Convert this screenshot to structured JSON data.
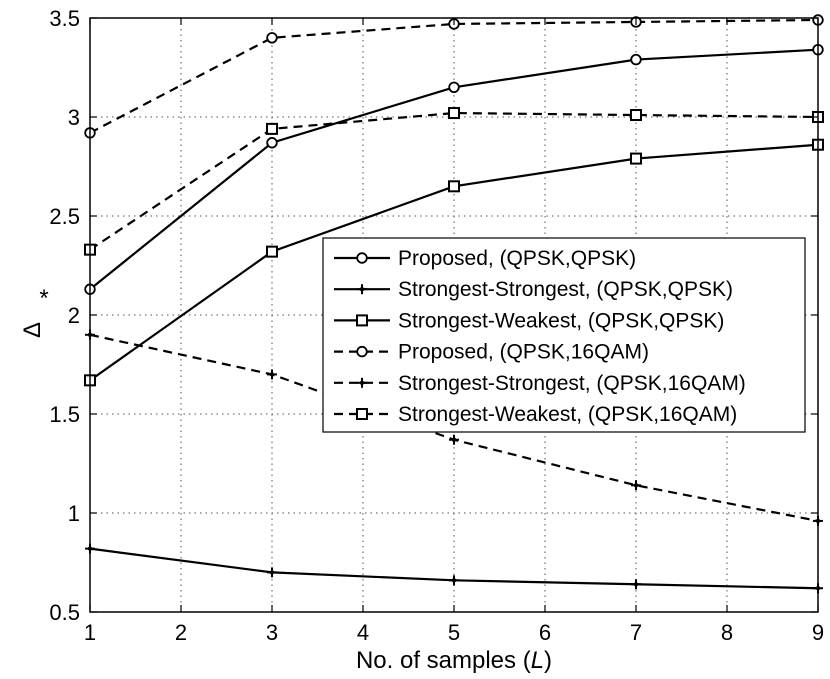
{
  "chart_data": {
    "type": "line",
    "title": "",
    "xlabel_prefix": "No. of samples (",
    "xlabel_var": "L",
    "xlabel_suffix": ")",
    "ylabel_symbol": "Δ",
    "ylabel_superscript": "*",
    "xlim": [
      1,
      9
    ],
    "ylim": [
      0.5,
      3.5
    ],
    "xticks": [
      "1",
      "2",
      "3",
      "4",
      "5",
      "6",
      "7",
      "8",
      "9"
    ],
    "yticks": [
      "0.5",
      "1",
      "1.5",
      "2",
      "2.5",
      "3",
      "3.5"
    ],
    "grid": true,
    "legend_position": "center-right",
    "x": [
      1,
      3,
      5,
      7,
      9
    ],
    "series": [
      {
        "name": "Proposed, (QPSK,QPSK)",
        "values": [
          2.13,
          2.87,
          3.15,
          3.29,
          3.34
        ],
        "line": "solid",
        "marker": "circle"
      },
      {
        "name": "Strongest-Strongest, (QPSK,QPSK)",
        "values": [
          0.82,
          0.7,
          0.66,
          0.64,
          0.62
        ],
        "line": "solid",
        "marker": "plus"
      },
      {
        "name": "Strongest-Weakest, (QPSK,QPSK)",
        "values": [
          1.67,
          2.32,
          2.65,
          2.79,
          2.86
        ],
        "line": "solid",
        "marker": "square"
      },
      {
        "name": "Proposed, (QPSK,16QAM)",
        "values": [
          2.92,
          3.4,
          3.47,
          3.48,
          3.49
        ],
        "line": "dashed",
        "marker": "circle"
      },
      {
        "name": "Strongest-Strongest, (QPSK,16QAM)",
        "values": [
          1.9,
          1.7,
          1.37,
          1.14,
          0.96
        ],
        "line": "dashed",
        "marker": "plus"
      },
      {
        "name": "Strongest-Weakest, (QPSK,16QAM)",
        "values": [
          2.33,
          2.94,
          3.02,
          3.01,
          3.0
        ],
        "line": "dashed",
        "marker": "square"
      }
    ],
    "colors": {
      "line": "#000000",
      "grid": "#555555",
      "background": "#ffffff"
    }
  }
}
